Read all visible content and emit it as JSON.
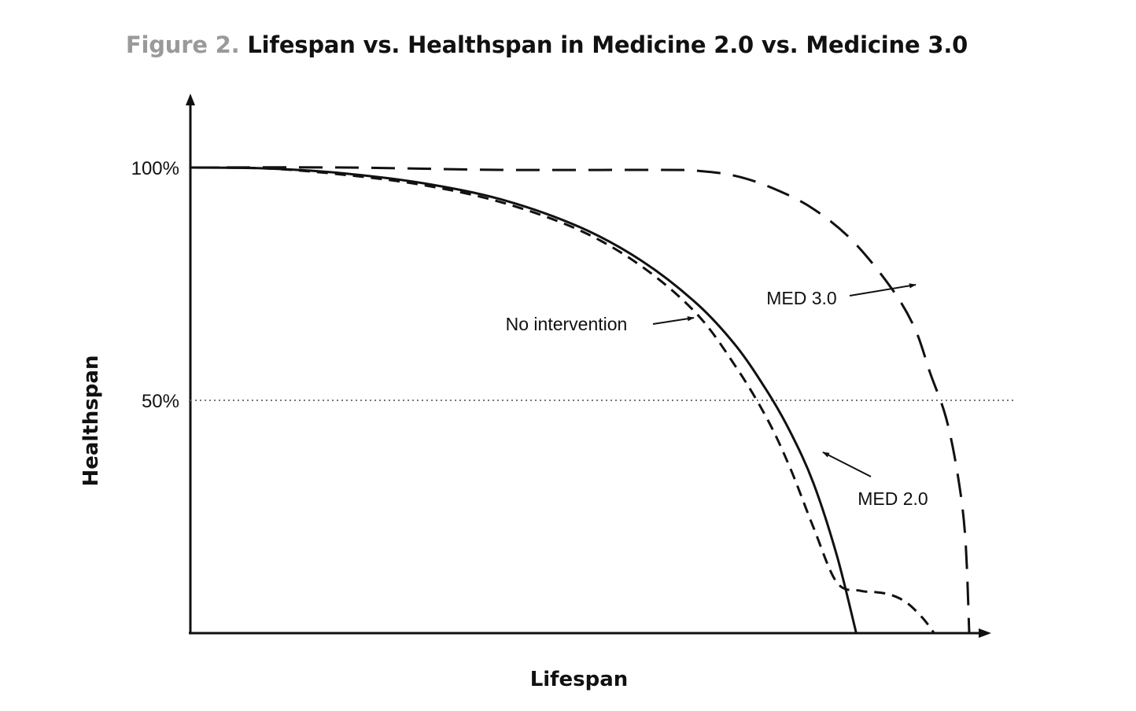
{
  "figure_label": "Figure 2.",
  "title": "Lifespan vs. Healthspan in Medicine 2.0 vs. Medicine 3.0",
  "chart_data": {
    "type": "line",
    "title": "Lifespan vs. Healthspan in Medicine 2.0 vs. Medicine 3.0",
    "xlabel": "Lifespan",
    "ylabel": "Healthspan",
    "xlim": [
      0,
      100
    ],
    "ylim": [
      0,
      100
    ],
    "yticks": [
      {
        "value": 100,
        "label": "100%"
      },
      {
        "value": 50,
        "label": "50%"
      }
    ],
    "reference_lines": [
      {
        "axis": "y",
        "value": 50,
        "style": "dotted"
      }
    ],
    "series": [
      {
        "name": "No intervention",
        "style": "solid",
        "x": [
          0,
          10,
          20,
          30,
          40,
          50,
          58,
          65,
          70,
          74,
          77,
          80,
          83,
          85.5
        ],
        "y": [
          100,
          99.8,
          98.7,
          96.6,
          93.1,
          87.2,
          79.9,
          70.8,
          61.8,
          52.1,
          43.3,
          32.2,
          16.7,
          0
        ]
      },
      {
        "name": "MED 2.0",
        "style": "short-dashed",
        "x": [
          0,
          10,
          20,
          30,
          40,
          50,
          58,
          65,
          70,
          74,
          77,
          80,
          83,
          86,
          88,
          90,
          92,
          94,
          95.5
        ],
        "y": [
          100,
          99.8,
          98.4,
          96.2,
          92.5,
          86.5,
          78.7,
          68.6,
          57.3,
          46.2,
          35.5,
          22.7,
          10.9,
          9.1,
          8.8,
          8.2,
          6.5,
          3.3,
          0
        ]
      },
      {
        "name": "MED 3.0",
        "style": "long-dashed",
        "x": [
          0,
          20,
          40,
          60,
          65,
          70,
          75,
          80,
          85,
          90,
          93,
          95,
          97,
          98.5,
          99.5,
          100
        ],
        "y": [
          100,
          100,
          99.5,
          99.5,
          99.3,
          98.2,
          95.4,
          91.1,
          84.3,
          74.1,
          65.5,
          55.8,
          46.4,
          34.2,
          20.5,
          0
        ]
      }
    ],
    "annotations": [
      {
        "text": "No intervention",
        "series": "No intervention"
      },
      {
        "text": "MED 3.0",
        "series": "MED 3.0"
      },
      {
        "text": "MED 2.0",
        "series": "MED 2.0"
      }
    ],
    "grid": false,
    "legend": "none",
    "colors": {
      "line": "#111111",
      "reference": "#777777",
      "figure_label": "#9a9a9a"
    }
  }
}
